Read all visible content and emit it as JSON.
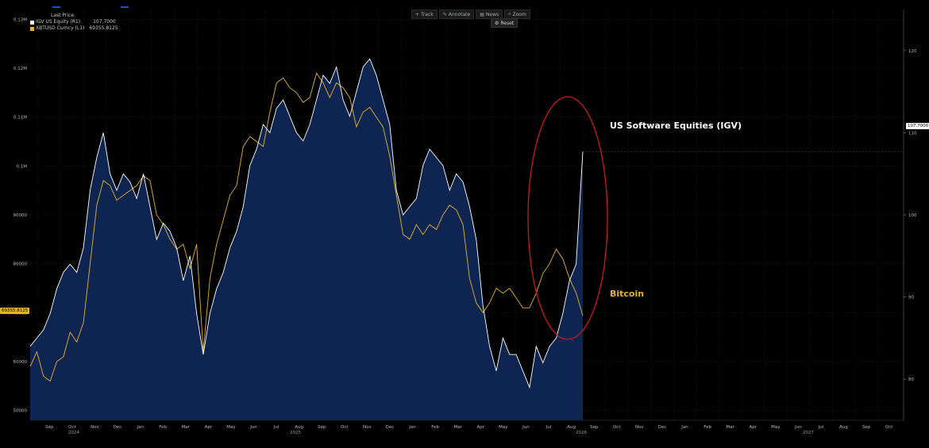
{
  "toolbar": {
    "track_label": "Track",
    "annotate_label": "Annotate",
    "news_label": "News",
    "zoom_label": "Zoom",
    "reset_label": "Reset"
  },
  "legend": {
    "header": "Last Price",
    "items": [
      {
        "label": "IGV US Equity  (R1)",
        "value": "107.7000",
        "color": "#ffffff"
      },
      {
        "label": "XBTUSD Curncy  (L1)",
        "value": "69355.8125",
        "color": "#e6b422"
      }
    ]
  },
  "annotations": {
    "igv": "US Software Equities (IGV)",
    "bitcoin": "Bitcoin"
  },
  "tags": {
    "left_last": "69355.8125",
    "right_last": "107.7000"
  },
  "colors": {
    "igv_line": "#ffffff",
    "igv_fill": "#0d2550",
    "btc_line": "#e6b422",
    "highlight_ellipse": "#d01818",
    "grid": "#2c2c2c"
  },
  "chart_data": {
    "type": "line",
    "x_ticks": [
      "Sep",
      "Oct",
      "Nov",
      "Dec",
      "Jan",
      "Feb",
      "Mar",
      "Apr",
      "May",
      "Jun",
      "Jul",
      "Aug",
      "Sep",
      "Oct",
      "Nov",
      "Dec",
      "Jan",
      "Feb",
      "Mar",
      "Apr",
      "May",
      "Jun",
      "Jul",
      "Aug",
      "Sep",
      "Oct",
      "Nov",
      "Dec",
      "Jan",
      "Feb",
      "Mar",
      "Apr",
      "May",
      "Jun",
      "Jul",
      "Aug",
      "Sep",
      "Oct"
    ],
    "year_labels": [
      "2024",
      "2025",
      "2026",
      "2027"
    ],
    "left_axis": {
      "ticks": [
        "50000",
        "60000",
        "70000",
        "80000",
        "90000",
        "0.1M",
        "0.11M",
        "0.12M",
        "0.13M"
      ],
      "ylim": [
        48000,
        132000
      ]
    },
    "right_axis": {
      "ticks": [
        "80",
        "90",
        "100",
        "110",
        "120"
      ],
      "ylim": [
        75,
        125
      ]
    },
    "series": [
      {
        "name": "IGV US Equity",
        "axis": "right",
        "values": [
          84,
          85,
          86,
          88,
          91,
          93,
          94,
          93,
          96,
          103,
          107,
          110,
          105,
          103,
          105,
          104,
          102,
          105,
          101,
          97,
          99,
          98,
          96,
          92,
          95,
          88,
          83,
          88,
          91,
          93,
          96,
          98,
          101,
          106,
          108,
          111,
          110,
          113,
          114,
          112,
          110,
          109,
          111,
          114,
          117,
          116,
          118,
          114,
          112,
          115,
          118,
          119,
          117,
          114,
          111,
          103,
          100,
          101,
          102,
          106,
          108,
          107,
          106,
          103,
          105,
          104,
          101,
          97,
          89,
          84,
          81,
          85,
          83,
          83,
          81,
          79,
          84,
          82,
          84,
          85,
          88,
          92,
          94,
          107.7
        ]
      },
      {
        "name": "XBTUSD Curncy",
        "axis": "left",
        "values": [
          59000,
          62000,
          57000,
          56000,
          60000,
          61000,
          66000,
          64000,
          68000,
          80000,
          92000,
          97000,
          96000,
          93000,
          94000,
          95000,
          96000,
          98000,
          97000,
          90000,
          88000,
          85000,
          83000,
          84000,
          79000,
          84000,
          62000,
          77000,
          84000,
          89000,
          94000,
          96000,
          104000,
          106000,
          105000,
          104000,
          111000,
          117000,
          118000,
          116000,
          115000,
          113000,
          114000,
          119000,
          117000,
          114000,
          117000,
          116000,
          114000,
          108000,
          111000,
          112000,
          110000,
          108000,
          102000,
          94000,
          86000,
          85000,
          88000,
          86000,
          88000,
          87000,
          90000,
          92000,
          91000,
          88000,
          77000,
          72000,
          70000,
          72000,
          75000,
          74000,
          75000,
          73000,
          71000,
          71000,
          74000,
          78000,
          80000,
          83000,
          81000,
          77000,
          74000,
          69355.8125
        ]
      }
    ]
  }
}
